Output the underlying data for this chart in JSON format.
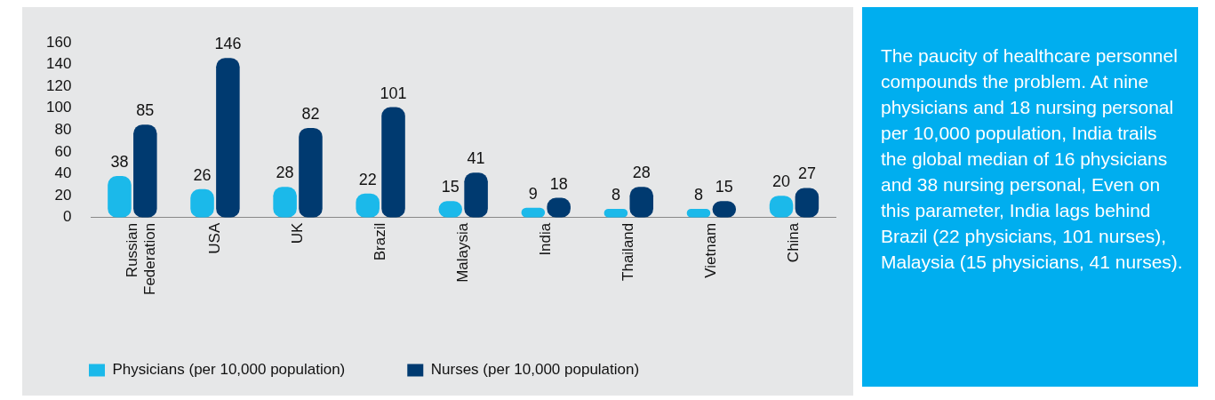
{
  "chart_data": {
    "type": "bar",
    "categories": [
      "Russian Federation",
      "USA",
      "UK",
      "Brazil",
      "Malaysia",
      "India",
      "Thailand",
      "Vietnam",
      "China"
    ],
    "series": [
      {
        "name": "Physicians (per 10,000 population)",
        "color": "#1bb9ea",
        "values": [
          38,
          26,
          28,
          22,
          15,
          9,
          8,
          8,
          20
        ]
      },
      {
        "name": "Nurses (per 10,000 population)",
        "color": "#003a70",
        "values": [
          85,
          146,
          82,
          101,
          41,
          18,
          28,
          15,
          27
        ]
      }
    ],
    "ylim": [
      0,
      160
    ],
    "yticks": [
      0,
      20,
      40,
      60,
      80,
      100,
      120,
      140,
      160
    ],
    "grid": false,
    "legend": "bottom left",
    "data_labels": true,
    "annotations": [
      "The paucity of healthcare personnel compounds the problem. At nine physicians and 18 nursing personal per 10,000 population, India trails the global median of 16 physicians and 38 nursing personal, Even on this parameter, India lags behind Brazil (22 physicians, 101 nurses), Malaysia (15 physicians, 41 nurses)."
    ]
  }
}
